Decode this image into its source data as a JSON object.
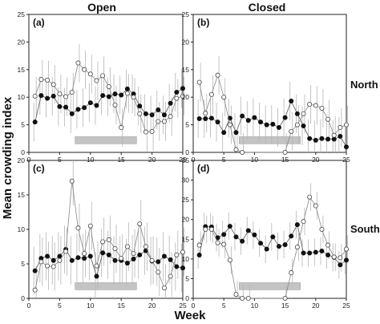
{
  "figure": {
    "col_titles": [
      "Open",
      "Closed"
    ],
    "row_titles": [
      "North",
      "South"
    ],
    "ylabel": "Mean crowding index",
    "xlabel": "Week"
  },
  "chart_data": [
    {
      "panel": "(a)",
      "type": "line",
      "xlim": [
        0,
        25
      ],
      "ylim": [
        0,
        25
      ],
      "xticks": [
        0,
        5,
        10,
        15,
        20,
        25
      ],
      "yticks": [
        0,
        5,
        10,
        15,
        20,
        25
      ],
      "shaded_range": [
        7.5,
        17.5
      ],
      "series": [
        {
          "marker": "filled",
          "x": [
            1,
            2,
            3,
            4,
            5,
            6,
            7,
            8,
            9,
            10,
            11,
            12,
            13,
            14,
            15,
            16,
            17,
            18,
            19,
            20,
            21,
            22,
            23,
            24,
            25
          ],
          "y": [
            5.5,
            10.3,
            9.8,
            10.2,
            8.3,
            8.2,
            7,
            7.8,
            8.1,
            9,
            8.5,
            10.3,
            10.1,
            10.6,
            10.4,
            11.5,
            10.6,
            8.4,
            7,
            6.8,
            7.7,
            6.8,
            8.9,
            10.9,
            11.6
          ]
        },
        {
          "marker": "open",
          "x": [
            1,
            2,
            3,
            4,
            5,
            6,
            7,
            8,
            9,
            10,
            11,
            12,
            13,
            14,
            15,
            16,
            17,
            18,
            19,
            20,
            21,
            22,
            23,
            24,
            25
          ],
          "y": [
            10.2,
            13.2,
            13.1,
            12.3,
            10.6,
            10.1,
            10.9,
            16.2,
            15,
            14.2,
            13,
            13.9,
            11.9,
            8.6,
            4.5,
            10.7,
            10,
            7,
            3.7,
            3.8,
            5.6,
            5.6,
            6.5,
            9.8,
            10.2
          ]
        }
      ]
    },
    {
      "panel": "(b)",
      "type": "line",
      "xlim": [
        0,
        25
      ],
      "ylim": [
        0,
        25
      ],
      "xticks": [
        0,
        5,
        10,
        15,
        20,
        25
      ],
      "yticks": [
        0,
        5,
        10,
        15,
        20,
        25
      ],
      "shaded_range": [
        7.5,
        17.5
      ],
      "series": [
        {
          "marker": "filled",
          "x": [
            1,
            2,
            3,
            4,
            5,
            6,
            7,
            8,
            9,
            10,
            11,
            12,
            13,
            14,
            15,
            16,
            17,
            18,
            19,
            20,
            21,
            22,
            23,
            24,
            25
          ],
          "y": [
            6.1,
            6.1,
            6.2,
            5.5,
            3.6,
            6.2,
            3.6,
            6.6,
            5.8,
            6.3,
            5.5,
            5,
            5.1,
            4.5,
            6.3,
            9.3,
            7,
            4.8,
            2.5,
            2.2,
            2.5,
            2.4,
            2.4,
            2.9,
            1
          ]
        },
        {
          "marker": "open",
          "x": [
            1,
            2,
            3,
            4,
            5,
            6,
            7,
            8,
            15,
            16,
            17,
            18,
            19,
            20,
            21,
            22,
            23,
            24,
            25
          ],
          "y": [
            12.7,
            7.1,
            10.5,
            14,
            10,
            5,
            0.5,
            0,
            0,
            3.8,
            5,
            7,
            8.7,
            8.5,
            8,
            6,
            3.1,
            4.5,
            5
          ]
        }
      ]
    },
    {
      "panel": "(c)",
      "type": "line",
      "xlim": [
        0,
        25
      ],
      "ylim": [
        0,
        20
      ],
      "xticks": [
        0,
        5,
        10,
        15,
        20,
        25
      ],
      "yticks": [
        0,
        5,
        10,
        15,
        20
      ],
      "shaded_range": [
        7.5,
        17.5
      ],
      "series": [
        {
          "marker": "filled",
          "x": [
            1,
            2,
            3,
            4,
            5,
            6,
            7,
            8,
            9,
            10,
            11,
            12,
            13,
            14,
            15,
            16,
            17,
            18,
            19,
            20,
            21,
            22,
            23,
            24,
            25
          ],
          "y": [
            4,
            5.8,
            6.1,
            5.5,
            6.1,
            7.1,
            5.5,
            5.9,
            5.8,
            6.1,
            3.2,
            6.6,
            6.3,
            5.5,
            5.5,
            5.1,
            5.7,
            6.3,
            6.9,
            5.4,
            5.3,
            6.1,
            5.6,
            4.6,
            4.4
          ]
        },
        {
          "marker": "open",
          "x": [
            1,
            2,
            3,
            4,
            5,
            6,
            7,
            8,
            9,
            10,
            11,
            12,
            13,
            14,
            15,
            16,
            17,
            18,
            19,
            20,
            21,
            22,
            23,
            24,
            25
          ],
          "y": [
            1.2,
            5.3,
            4.7,
            4.6,
            5.5,
            6.8,
            17,
            10.2,
            6.5,
            10.5,
            4.7,
            8.2,
            8.5,
            7.2,
            5.8,
            7.5,
            6.5,
            10.8,
            7.5,
            5.5,
            3.8,
            1.5,
            3.2,
            6.3,
            6.7
          ]
        }
      ]
    },
    {
      "panel": "(d)",
      "type": "line",
      "xlim": [
        0,
        25
      ],
      "ylim": [
        0,
        35
      ],
      "xticks": [
        0,
        5,
        10,
        15,
        20,
        25
      ],
      "yticks": [
        0,
        5,
        10,
        15,
        20,
        25,
        30,
        35
      ],
      "shaded_range": [
        7.5,
        17.5
      ],
      "series": [
        {
          "marker": "filled",
          "x": [
            1,
            2,
            3,
            4,
            5,
            6,
            7,
            8,
            9,
            10,
            11,
            12,
            13,
            14,
            15,
            16,
            17,
            18,
            19,
            20,
            21,
            22,
            23,
            24,
            25
          ],
          "y": [
            11,
            18.2,
            18.1,
            15.4,
            16.2,
            18.3,
            15.6,
            14.5,
            17.2,
            16.1,
            14,
            12.5,
            15.6,
            13.2,
            13.6,
            15.8,
            18.7,
            11.5,
            11.5,
            11.7,
            12,
            11,
            10.4,
            8.5,
            9.7
          ]
        },
        {
          "marker": "open",
          "x": [
            1,
            2,
            3,
            4,
            5,
            6,
            7,
            8,
            9,
            15,
            16,
            17,
            18,
            19,
            20,
            21,
            22,
            23,
            24,
            25
          ],
          "y": [
            13.5,
            17.5,
            17.5,
            14.1,
            13.7,
            9.7,
            1,
            0,
            0,
            0,
            6.5,
            13,
            19.5,
            25.7,
            23.5,
            17.5,
            13.5,
            10.5,
            10.3,
            12.5
          ]
        }
      ]
    }
  ]
}
